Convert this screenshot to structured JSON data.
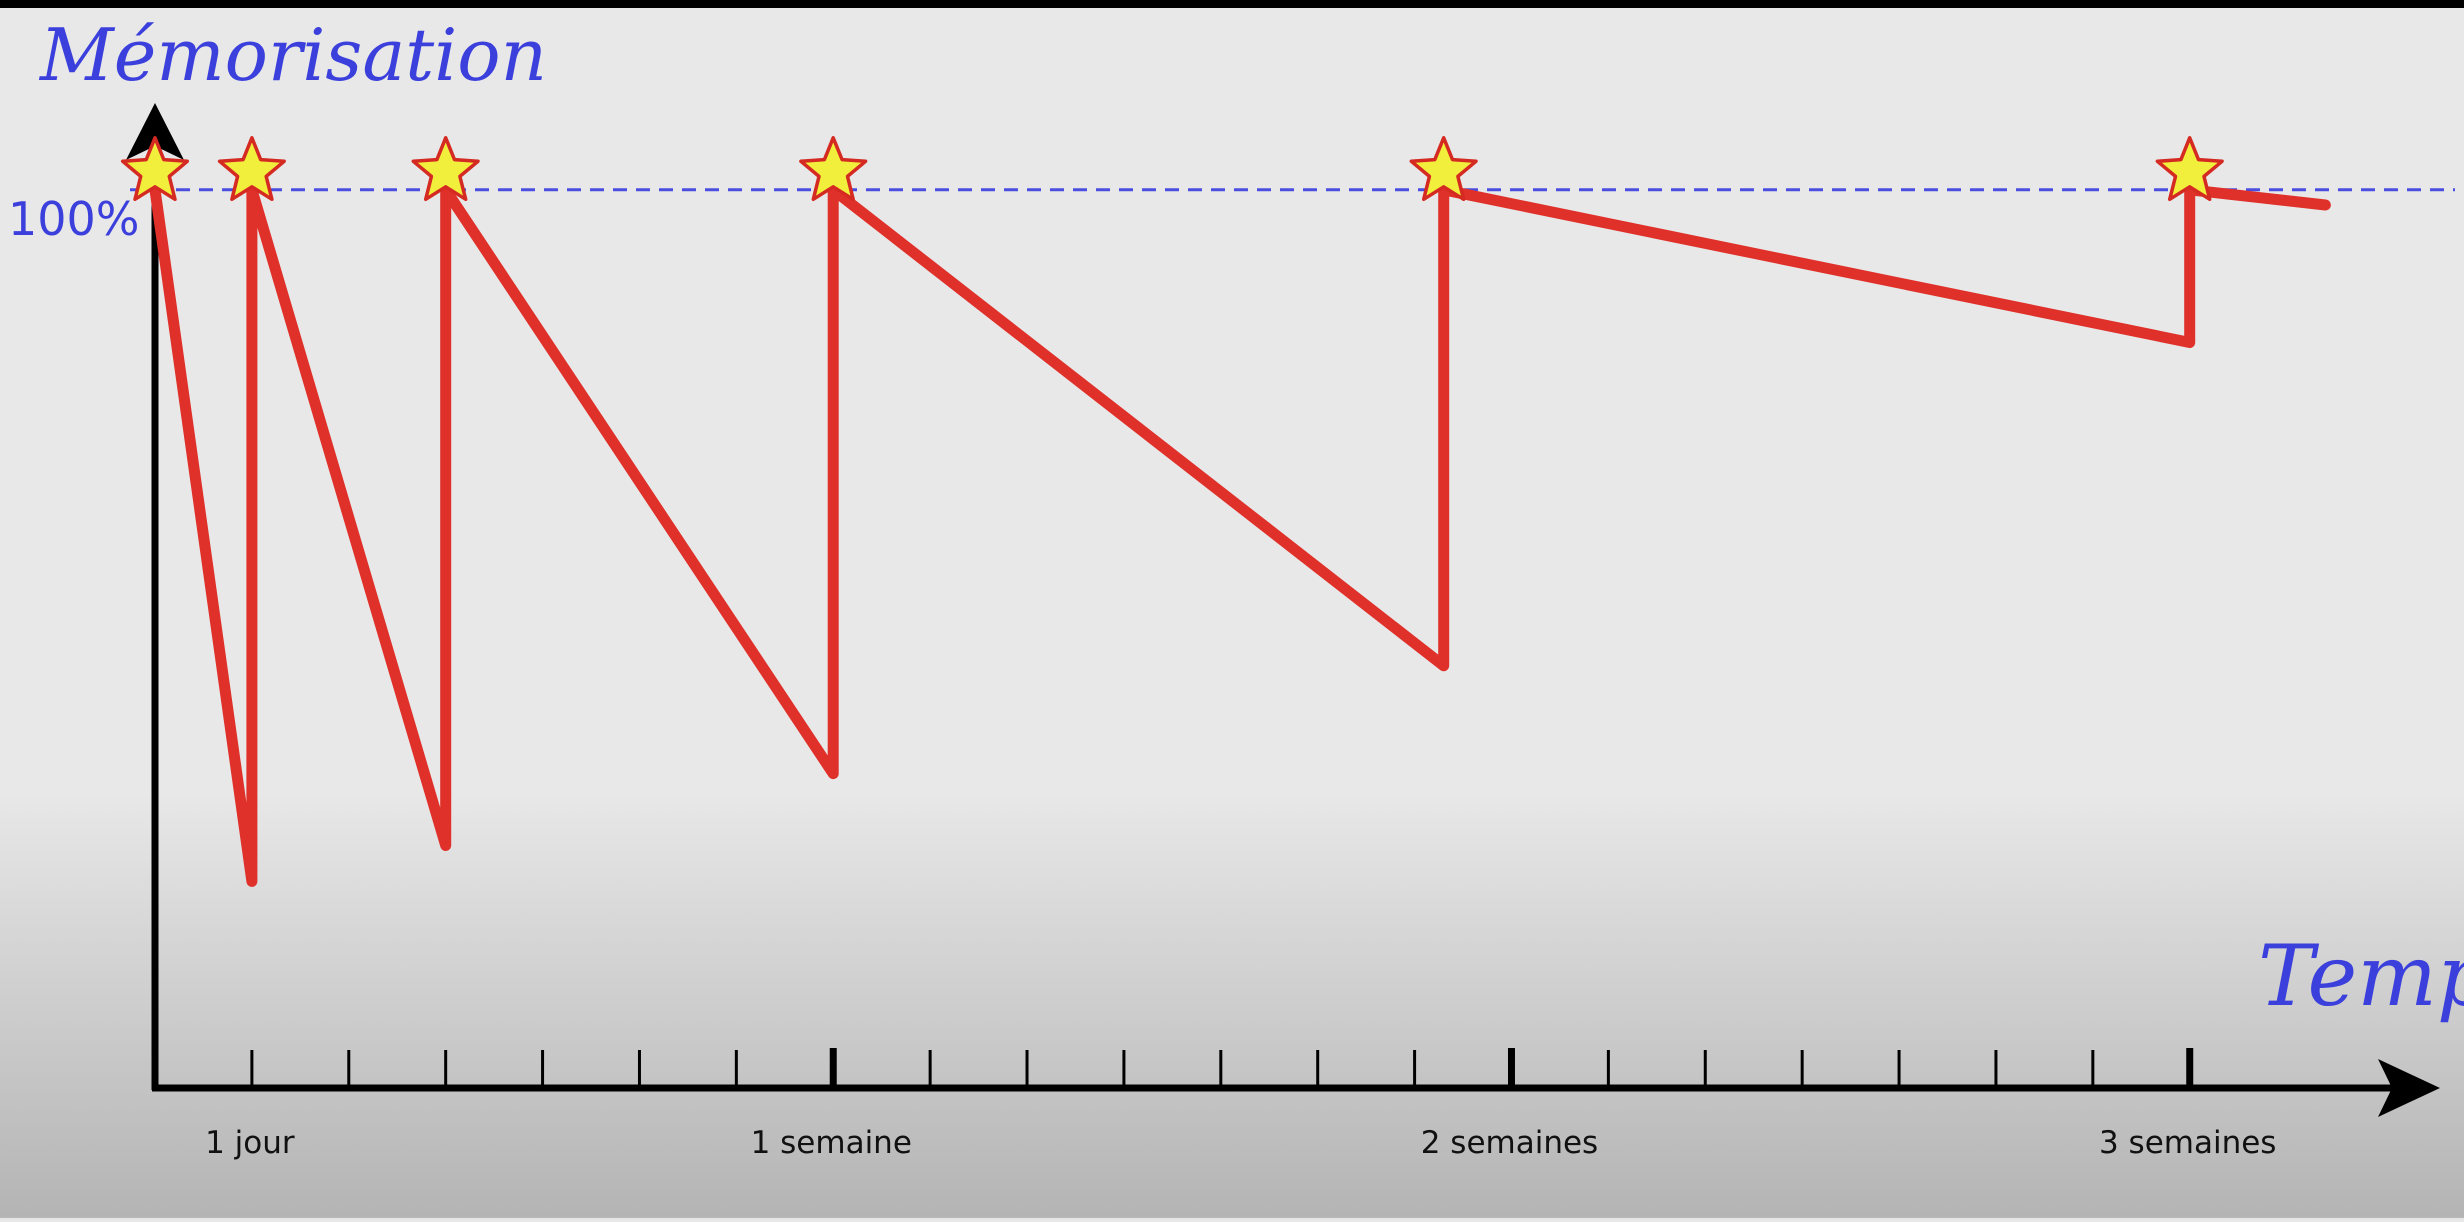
{
  "chart_data": {
    "type": "line",
    "title": "",
    "ylabel": "Mémorisation",
    "xlabel": "Temps",
    "y_reference": {
      "label": "100%",
      "value": 100
    },
    "ticks": [
      {
        "day": 1,
        "label": "1 jour"
      },
      {
        "day": 7,
        "label": "1 semaine"
      },
      {
        "day": 14,
        "label": "2 semaines"
      },
      {
        "day": 21,
        "label": "3 semaines"
      }
    ],
    "xlim": [
      0,
      22.2
    ],
    "ylim": [
      0,
      113
    ],
    "series": [
      {
        "name": "Mémorisation",
        "color": "#e0302a",
        "points": [
          {
            "x": 0,
            "y": 100
          },
          {
            "x": 1,
            "y": 23
          },
          {
            "x": 1,
            "y": 100
          },
          {
            "x": 3,
            "y": 27
          },
          {
            "x": 3,
            "y": 100
          },
          {
            "x": 7,
            "y": 35
          },
          {
            "x": 7,
            "y": 100
          },
          {
            "x": 13.3,
            "y": 47
          },
          {
            "x": 13.3,
            "y": 100
          },
          {
            "x": 21,
            "y": 83
          },
          {
            "x": 21,
            "y": 100
          },
          {
            "x": 22.4,
            "y": 98.3
          }
        ]
      }
    ],
    "reviews": [
      0,
      1,
      3,
      7,
      13.3,
      21
    ],
    "colors": {
      "curve": "#e0302a",
      "star_fill": "#f2ee3c",
      "star_stroke": "#d42a22",
      "label": "#3b3fdc",
      "axis": "#000000",
      "reference": "#4a4ee0",
      "top_bar": "#000000"
    }
  }
}
